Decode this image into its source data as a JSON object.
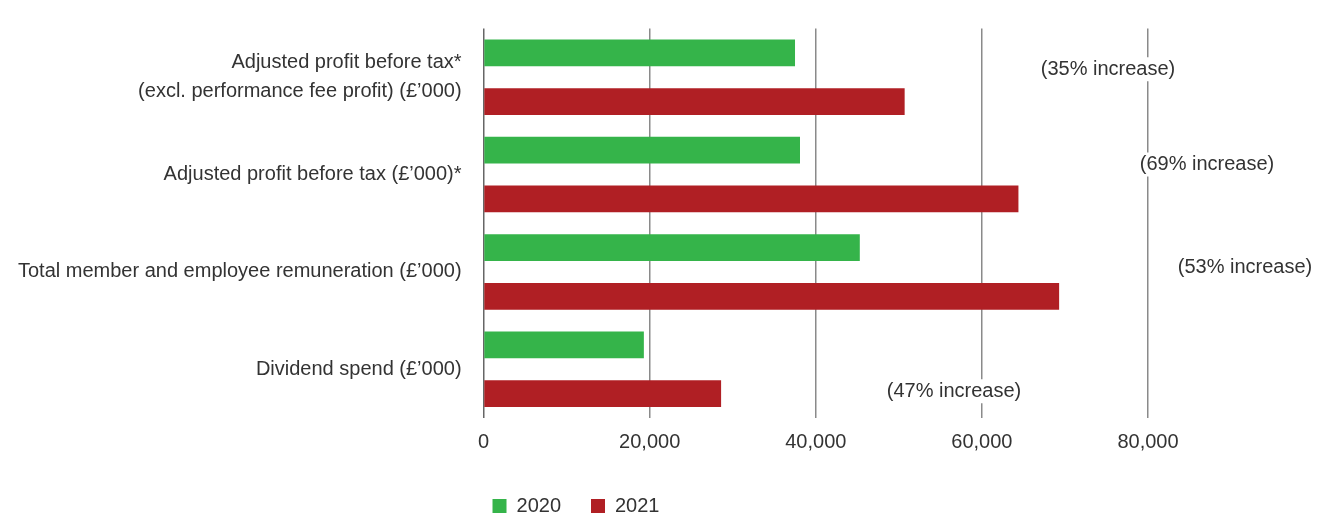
{
  "chart_data": {
    "type": "bar",
    "orientation": "horizontal",
    "categories": [
      "Adjusted profit before tax*\n(excl. performance fee profit) (£’000)",
      "Adjusted profit before tax (£’000)*",
      "Total member and employee remuneration (£’000)",
      "Dividend spend (£’000)"
    ],
    "series": [
      {
        "name": "2020",
        "color": "#35b44a",
        "values": [
          37500,
          38100,
          45300,
          19300
        ]
      },
      {
        "name": "2021",
        "color": "#b01f24",
        "values": [
          50700,
          64400,
          69300,
          28600
        ]
      }
    ],
    "xlim": [
      0,
      80000
    ],
    "xticks": [
      {
        "value": 0,
        "label": "0"
      },
      {
        "value": 20000,
        "label": "20,000"
      },
      {
        "value": 40000,
        "label": "40,000"
      },
      {
        "value": 60000,
        "label": "60,000"
      },
      {
        "value": 80000,
        "label": "80,000"
      }
    ],
    "grid": "x",
    "legend": "bottom",
    "annotations": [
      "(35% increase)",
      "(69% increase)",
      "(53% increase)",
      "(47% increase)"
    ]
  }
}
